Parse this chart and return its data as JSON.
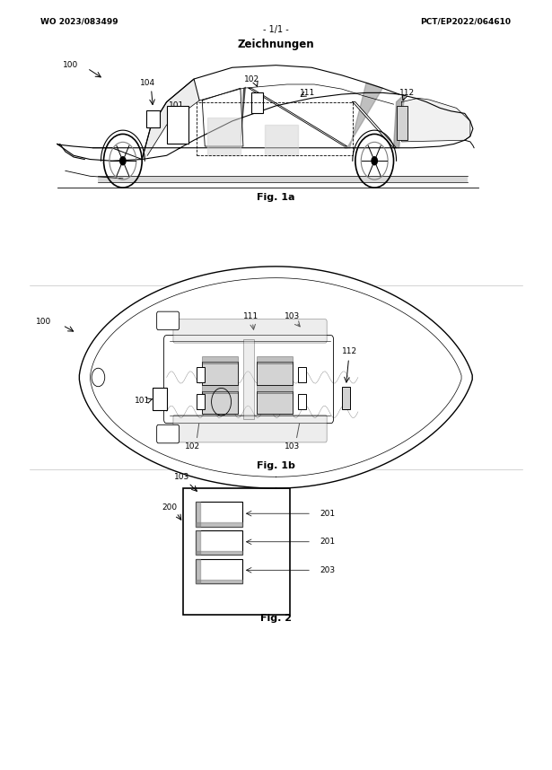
{
  "page_width": 6.15,
  "page_height": 8.58,
  "bg_color": "#ffffff",
  "header_left": "WO 2023/083499",
  "header_right": "PCT/EP2022/064610",
  "header_center": "- 1/1 -",
  "title": "Zeichnungen",
  "fig1a_label": "Fig. 1a",
  "fig1b_label": "Fig. 1b",
  "fig2_label": "Fig. 2"
}
